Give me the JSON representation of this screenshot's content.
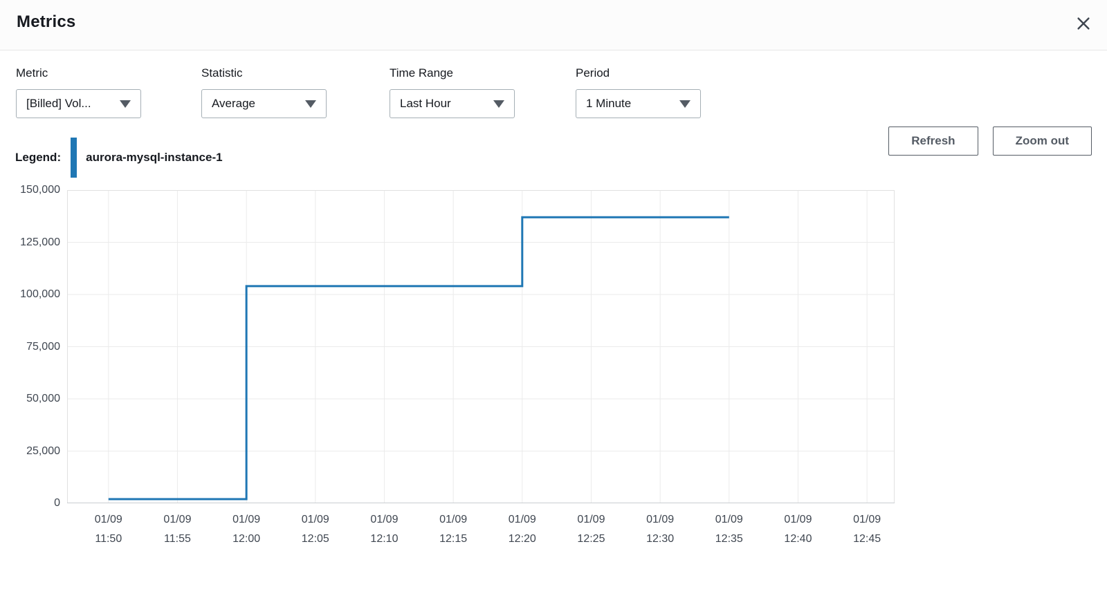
{
  "header": {
    "title": "Metrics"
  },
  "controls": {
    "metric": {
      "label": "Metric",
      "value": "[Billed] Vol..."
    },
    "statistic": {
      "label": "Statistic",
      "value": "Average"
    },
    "time_range": {
      "label": "Time Range",
      "value": "Last Hour"
    },
    "period": {
      "label": "Period",
      "value": "1 Minute"
    }
  },
  "actions": {
    "refresh": "Refresh",
    "zoom_out": "Zoom out"
  },
  "legend": {
    "label": "Legend:",
    "series_name": "aurora-mysql-instance-1"
  },
  "colors": {
    "series_blue": "#1f77b4",
    "button_outline": "#545b64",
    "axis_text": "#3f4650"
  },
  "icons": {
    "close": "close-icon",
    "dropdown": "caret-down-icon"
  },
  "chart_data": {
    "type": "line",
    "step": true,
    "title": "",
    "xlabel": "",
    "ylabel": "",
    "grid": true,
    "legend_position": "top-left",
    "x_axis": {
      "window_start": "11:47",
      "window_end": "12:47",
      "tick_date_label": "01/09",
      "tick_times": [
        "11:50",
        "11:55",
        "12:00",
        "12:05",
        "12:10",
        "12:15",
        "12:20",
        "12:25",
        "12:30",
        "12:35",
        "12:40",
        "12:45"
      ]
    },
    "y_axis": {
      "min": 0,
      "max": 150000,
      "tick_step": 25000,
      "tick_labels": [
        "0",
        "25,000",
        "50,000",
        "75,000",
        "100,000",
        "125,000",
        "150,000"
      ]
    },
    "series": [
      {
        "name": "aurora-mysql-instance-1",
        "color": "#1f77b4",
        "points": [
          {
            "time": "11:50",
            "value": 2000
          },
          {
            "time": "12:00",
            "value": 2000
          },
          {
            "time": "12:00",
            "value": 104000
          },
          {
            "time": "12:20",
            "value": 104000
          },
          {
            "time": "12:20",
            "value": 137000
          },
          {
            "time": "12:35",
            "value": 137000
          }
        ]
      }
    ]
  }
}
